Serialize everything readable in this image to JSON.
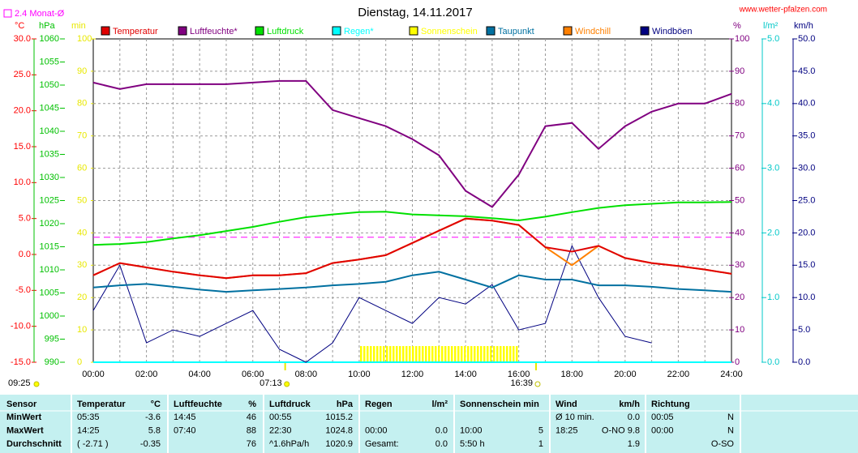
{
  "chart_data": {
    "type": "line",
    "title": "Dienstag, 14.11.2017",
    "source": "www.wetter-pfalzen.com",
    "monthly_avg": {
      "value": 2.4,
      "label": "2.4 Monat-Ø",
      "color": "#ff00ff",
      "axis": 0
    },
    "time_left": "09:25",
    "sunrise": "07:13",
    "sunset": "16:39",
    "xlim": [
      0,
      24
    ],
    "xticks": [
      {
        "value": 0,
        "label": "00:00"
      },
      {
        "value": 2,
        "label": "02:00"
      },
      {
        "value": 4,
        "label": "04:00"
      },
      {
        "value": 6,
        "label": "06:00"
      },
      {
        "value": 8,
        "label": "08:00"
      },
      {
        "value": 10,
        "label": "10:00"
      },
      {
        "value": 12,
        "label": "12:00"
      },
      {
        "value": 14,
        "label": "14:00"
      },
      {
        "value": 16,
        "label": "16:00"
      },
      {
        "value": 18,
        "label": "18:00"
      },
      {
        "value": 20,
        "label": "20:00"
      },
      {
        "value": 22,
        "label": "22:00"
      },
      {
        "value": 24,
        "label": "24:00"
      }
    ],
    "grid": true,
    "axes": [
      {
        "label": "°C",
        "color": "#ff0000",
        "lim": [
          -15,
          30
        ],
        "ticks": [
          {
            "value": 30,
            "label": "30.0"
          },
          {
            "value": 25,
            "label": "25.0"
          },
          {
            "value": 20,
            "label": "20.0"
          },
          {
            "value": 15,
            "label": "15.0"
          },
          {
            "value": 10,
            "label": "10.0"
          },
          {
            "value": 5,
            "label": "5.0"
          },
          {
            "value": 0,
            "label": "0.0"
          },
          {
            "value": -5,
            "label": "-5.0"
          },
          {
            "value": -10,
            "label": "-10.0"
          },
          {
            "value": -15,
            "label": "-15.0"
          }
        ]
      },
      {
        "label": "hPa",
        "color": "#00c000",
        "lim": [
          990,
          1060
        ],
        "ticks": [
          1060,
          1055,
          1050,
          1045,
          1040,
          1035,
          1030,
          1025,
          1020,
          1015,
          1010,
          1005,
          1000,
          995,
          990
        ]
      },
      {
        "label": "min",
        "color": "#e8e800",
        "lim": [
          0,
          100
        ],
        "ticks": [
          100,
          90,
          80,
          70,
          60,
          50,
          40,
          30,
          20,
          10,
          0
        ]
      },
      {
        "label": "%",
        "color": "#800080",
        "lim": [
          0,
          100
        ],
        "ticks": [
          100,
          90,
          80,
          70,
          60,
          50,
          40,
          30,
          20,
          10,
          0
        ]
      },
      {
        "label": "l/m²",
        "color": "#00c8c8",
        "lim": [
          0,
          5
        ],
        "ticks": [
          {
            "value": 5,
            "label": "5.0"
          },
          {
            "value": 4,
            "label": "4.0"
          },
          {
            "value": 3,
            "label": "3.0"
          },
          {
            "value": 2,
            "label": "2.0"
          },
          {
            "value": 1,
            "label": "1.0"
          },
          {
            "value": 0,
            "label": "0.0"
          }
        ]
      },
      {
        "label": "km/h",
        "color": "#000080",
        "lim": [
          0,
          50
        ],
        "ticks": [
          {
            "value": 50,
            "label": "50.0"
          },
          {
            "value": 45,
            "label": "45.0"
          },
          {
            "value": 40,
            "label": "40.0"
          },
          {
            "value": 35,
            "label": "35.0"
          },
          {
            "value": 30,
            "label": "30.0"
          },
          {
            "value": 25,
            "label": "25.0"
          },
          {
            "value": 20,
            "label": "20.0"
          },
          {
            "value": 15,
            "label": "15.0"
          },
          {
            "value": 10,
            "label": "10.0"
          },
          {
            "value": 5,
            "label": "5.0"
          },
          {
            "value": 0,
            "label": "0.0"
          }
        ]
      }
    ],
    "x": [
      0,
      1,
      2,
      3,
      4,
      5,
      6,
      7,
      8,
      9,
      10,
      11,
      12,
      13,
      14,
      15,
      16,
      17,
      18,
      19,
      20,
      21,
      22,
      23,
      24
    ],
    "series": [
      {
        "name": "Temperatur",
        "color": "#e00000",
        "axis": 0,
        "values": [
          -2.9,
          -1.2,
          -1.8,
          -2.4,
          -2.9,
          -3.3,
          -2.9,
          -2.9,
          -2.6,
          -1.2,
          -0.7,
          -0.1,
          1.6,
          3.3,
          5.0,
          4.7,
          4.1,
          1.0,
          0.4,
          1.2,
          -0.5,
          -1.2,
          -1.6,
          -2.1,
          -2.7
        ]
      },
      {
        "name": "Luftfeuchte*",
        "color": "#800080",
        "axis": 3,
        "values": [
          86.5,
          84.5,
          86,
          86,
          86,
          86,
          86.5,
          87,
          87,
          78,
          75.5,
          73,
          69,
          64,
          53,
          48,
          58,
          73,
          74,
          66,
          73,
          77.5,
          80,
          80,
          83
        ]
      },
      {
        "name": "Luftdruck",
        "color": "#00e000",
        "axis": 1,
        "values": [
          1015.4,
          1015.6,
          1016,
          1016.8,
          1017.5,
          1018.4,
          1019.3,
          1020.4,
          1021.4,
          1022,
          1022.5,
          1022.6,
          1022,
          1021.8,
          1021.6,
          1021.2,
          1020.7,
          1021.5,
          1022.5,
          1023.4,
          1024,
          1024.3,
          1024.6,
          1024.6,
          1024.7
        ]
      },
      {
        "name": "Regen*",
        "color": "#00ffff",
        "axis": 4,
        "values": [
          0,
          0,
          0,
          0,
          0,
          0,
          0,
          0,
          0,
          0,
          0,
          0,
          0,
          0,
          0,
          0,
          0,
          0,
          0,
          0,
          0,
          0,
          0,
          0,
          0
        ]
      },
      {
        "name": "Sonnenschein",
        "color": "#ffff00",
        "axis": 2,
        "values": [
          0,
          0,
          0,
          0,
          0,
          0,
          0,
          0,
          0,
          0,
          5,
          5,
          5,
          5,
          5,
          5,
          0,
          0,
          0,
          0,
          0,
          0,
          0,
          0,
          0
        ]
      },
      {
        "name": "Taupunkt",
        "color": "#0070a0",
        "axis": 0,
        "values": [
          -4.6,
          -4.3,
          -4.1,
          -4.5,
          -4.9,
          -5.2,
          -5.0,
          -4.8,
          -4.6,
          -4.3,
          -4.1,
          -3.8,
          -2.9,
          -2.4,
          -3.5,
          -4.6,
          -2.9,
          -3.5,
          -3.5,
          -4.3,
          -4.3,
          -4.5,
          -4.8,
          -5.0,
          -5.2
        ]
      },
      {
        "name": "Windchill",
        "color": "#ff8000",
        "axis": 0,
        "values": [
          -2.9,
          -1.2,
          -1.8,
          -2.4,
          -2.9,
          -3.3,
          -2.9,
          -2.9,
          -2.6,
          -1.2,
          -0.7,
          -0.1,
          1.6,
          3.3,
          5.0,
          4.7,
          4.1,
          1.0,
          -1.5,
          1.2,
          -0.5,
          -1.2,
          -1.6,
          -2.1,
          -2.7
        ]
      },
      {
        "name": "Windböen",
        "color": "#000080",
        "axis": 5,
        "values": [
          8,
          15,
          3,
          5,
          4,
          6,
          8,
          2,
          0,
          3,
          10,
          8,
          6,
          10,
          9,
          12,
          5,
          6,
          18,
          10,
          4,
          3,
          null,
          null,
          null
        ]
      }
    ]
  },
  "table": {
    "header": [
      "Sensor",
      "Temperatur",
      "°C",
      "Luftfeuchte",
      "%",
      "Luftdruck",
      "hPa",
      "Regen",
      "l/m²",
      "Sonnenschein min",
      null,
      "Wind",
      "km/h",
      "Richtung",
      null
    ],
    "rows": [
      [
        "MinWert",
        "05:35",
        "-3.6",
        "14:45",
        "46",
        "00:55",
        "1015.2",
        null,
        null,
        null,
        null,
        "Ø 10 min.",
        "0.0",
        "00:05",
        "N"
      ],
      [
        "MaxWert",
        "14:25",
        "5.8",
        "07:40",
        "88",
        "22:30",
        "1024.8",
        "00:00",
        "0.0",
        "10:00",
        "5",
        "18:25",
        "O-NO 9.8",
        "00:00",
        "N"
      ],
      [
        "Durchschnitt",
        "( -2.71 )",
        "-0.35",
        null,
        "76",
        "^1.6hPa/h",
        "1020.9",
        "Gesamt:",
        "0.0",
        "5:50 h",
        "1",
        null,
        "1.9",
        null,
        "O-SO"
      ]
    ]
  }
}
